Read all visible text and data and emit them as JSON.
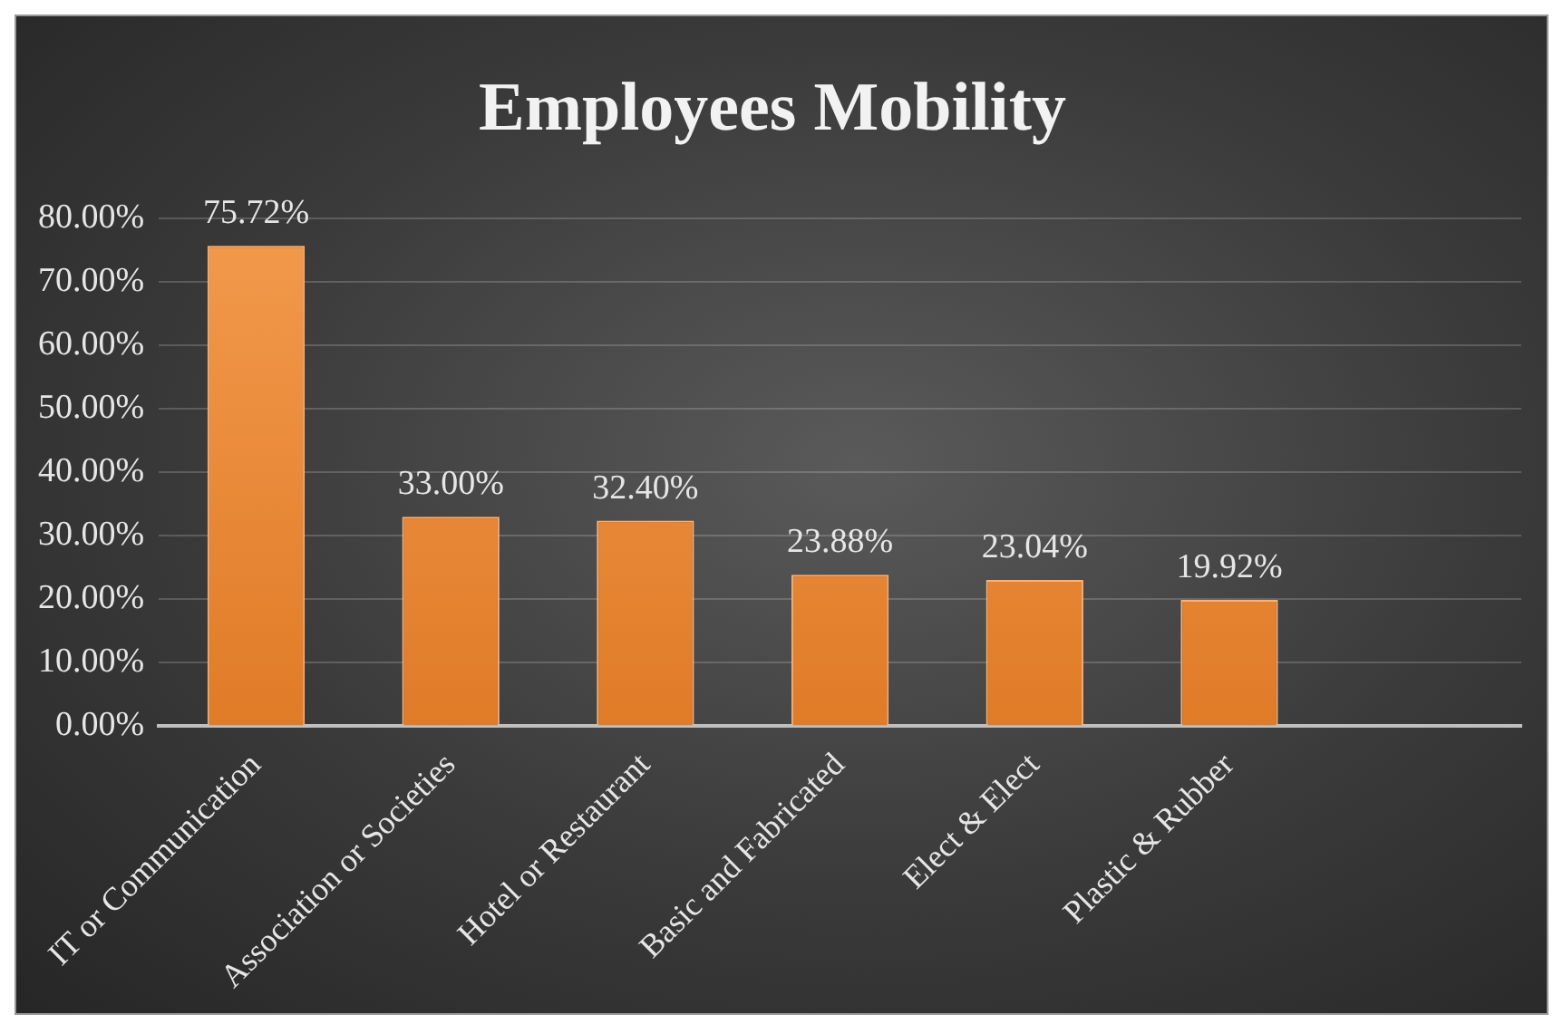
{
  "chart_data": {
    "type": "bar",
    "title": "Employees Mobility",
    "categories": [
      "IT or Communication",
      "Association or Societies",
      "Hotel or Restaurant",
      "Basic and Fabricated",
      "Elect & Elect",
      "Plastic & Rubber",
      null
    ],
    "values": [
      75.72,
      33.0,
      32.4,
      23.88,
      23.04,
      19.92,
      null
    ],
    "value_labels": [
      "75.72%",
      "33.00%",
      "32.40%",
      "23.88%",
      "23.04%",
      "19.92%",
      null
    ],
    "color": "#f29a4c",
    "ylim": [
      0,
      80
    ],
    "yticks": [
      {
        "value": 0,
        "label": "0.00%"
      },
      {
        "value": 10,
        "label": "10.00%"
      },
      {
        "value": 20,
        "label": "20.00%"
      },
      {
        "value": 30,
        "label": "30.00%"
      },
      {
        "value": 40,
        "label": "40.00%"
      },
      {
        "value": 50,
        "label": "50.00%"
      },
      {
        "value": 60,
        "label": "60.00%"
      },
      {
        "value": 70,
        "label": "70.00%"
      },
      {
        "value": 80,
        "label": "80.00%"
      }
    ],
    "grid": "y",
    "legend": false
  }
}
